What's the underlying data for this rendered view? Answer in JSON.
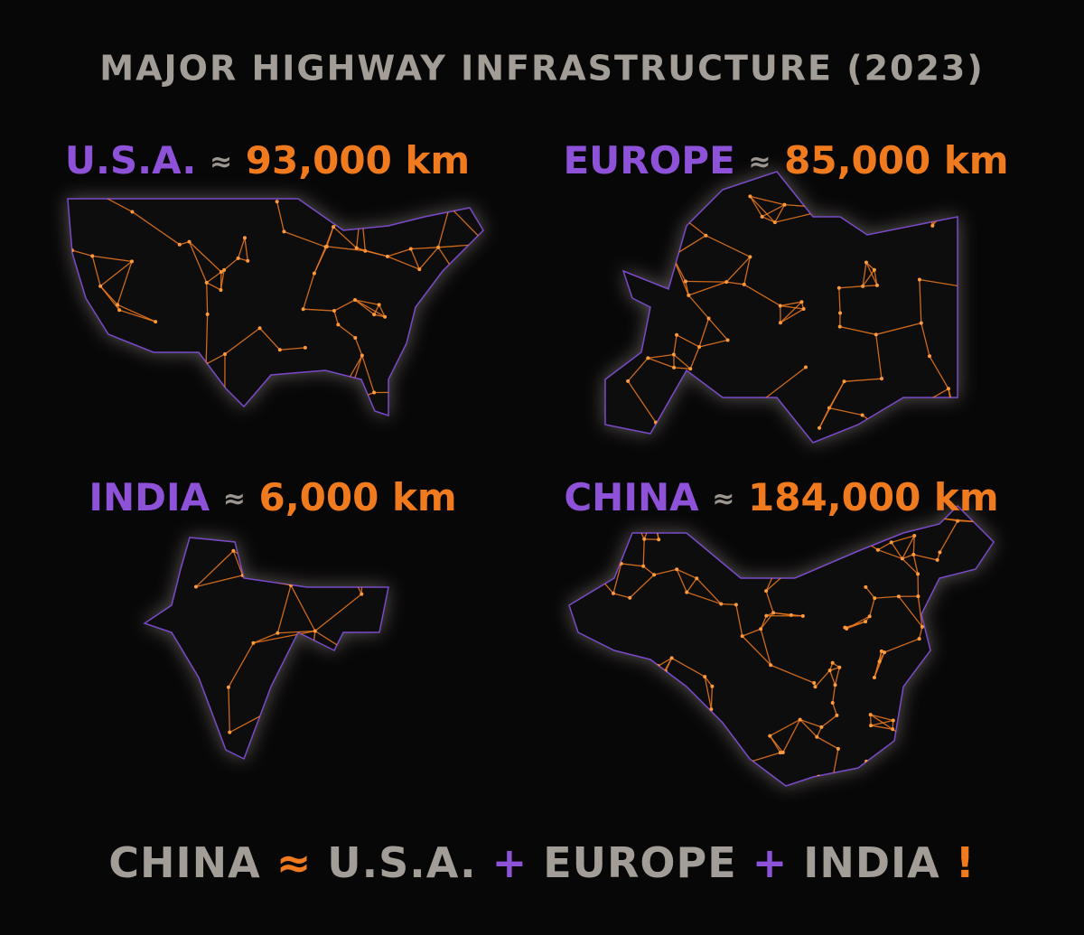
{
  "title": "MAJOR HIGHWAY INFRASTRUCTURE (2023)",
  "panels": [
    {
      "region": "U.S.A.",
      "approx": "≈",
      "value": "93,000 km"
    },
    {
      "region": "EUROPE",
      "approx": "≈",
      "value": "85,000 km"
    },
    {
      "region": "INDIA",
      "approx": "≈",
      "value": "6,000 km"
    },
    {
      "region": "CHINA",
      "approx": "≈",
      "value": "184,000 km"
    }
  ],
  "footer": {
    "a": "CHINA",
    "eq": "≈",
    "b": "U.S.A.",
    "plus1": "+",
    "c": "EUROPE",
    "plus2": "+",
    "d": "INDIA",
    "bang": "!"
  }
}
